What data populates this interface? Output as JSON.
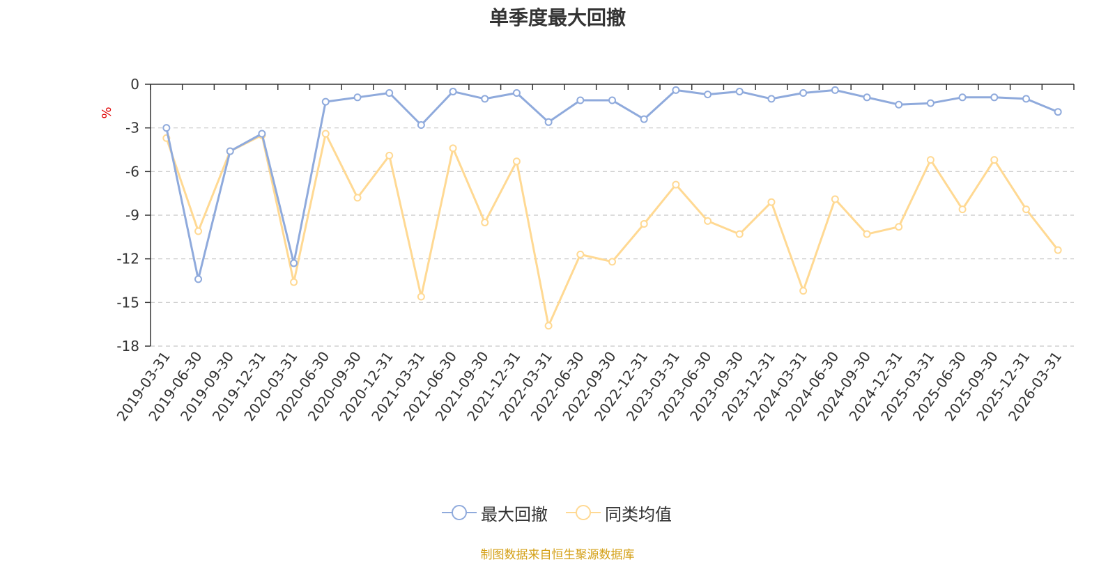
{
  "title": "单季度最大回撤",
  "footer": "制图数据来自恒生聚源数据库",
  "colors": {
    "series1": "#8faadc",
    "series2": "#ffd993",
    "unit": "#e00000",
    "grid": "#c8c8c8",
    "footer": "#d4a017"
  },
  "chart_data": {
    "type": "line",
    "title": "单季度最大回撤",
    "ylabel": "%",
    "ylim": [
      -18,
      0
    ],
    "yticks": [
      0,
      -3,
      -6,
      -9,
      -12,
      -15,
      -18
    ],
    "grid": "horizontal dashed",
    "legend": "bottom-center",
    "categories": [
      "2019-03-31",
      "2019-06-30",
      "2019-09-30",
      "2019-12-31",
      "2020-03-31",
      "2020-06-30",
      "2020-09-30",
      "2020-12-31",
      "2021-03-31",
      "2021-06-30",
      "2021-09-30",
      "2021-12-31",
      "2022-03-31",
      "2022-06-30",
      "2022-09-30",
      "2022-12-31",
      "2023-03-31",
      "2023-06-30",
      "2023-09-30",
      "2023-12-31",
      "2024-03-31",
      "2024-06-30",
      "2024-09-30",
      "2024-12-31",
      "2025-03-31",
      "2025-06-30",
      "2025-09-30",
      "2025-12-31",
      "2026-03-31"
    ],
    "series": [
      {
        "name": "最大回撤",
        "values": [
          -3.0,
          -13.4,
          -4.6,
          -3.4,
          -12.3,
          -1.2,
          -0.9,
          -0.6,
          -2.8,
          -0.5,
          -1.0,
          -0.6,
          -2.6,
          -1.1,
          -1.1,
          -2.4,
          -0.4,
          -0.7,
          -0.5,
          -1.0,
          -0.6,
          -0.4,
          -0.9,
          -1.4,
          -1.3,
          -0.9,
          -0.9,
          -1.0,
          -1.9
        ]
      },
      {
        "name": "同类均值",
        "values": [
          -3.7,
          -10.1,
          -4.6,
          -3.5,
          -13.6,
          -3.4,
          -7.8,
          -4.9,
          -14.6,
          -4.4,
          -9.5,
          -5.3,
          -16.6,
          -11.7,
          -12.2,
          -9.6,
          -6.9,
          -9.4,
          -10.3,
          -8.1,
          -14.2,
          -7.9,
          -10.3,
          -9.8,
          -5.2,
          -8.6,
          -5.2,
          -8.6,
          -11.4
        ]
      }
    ]
  }
}
